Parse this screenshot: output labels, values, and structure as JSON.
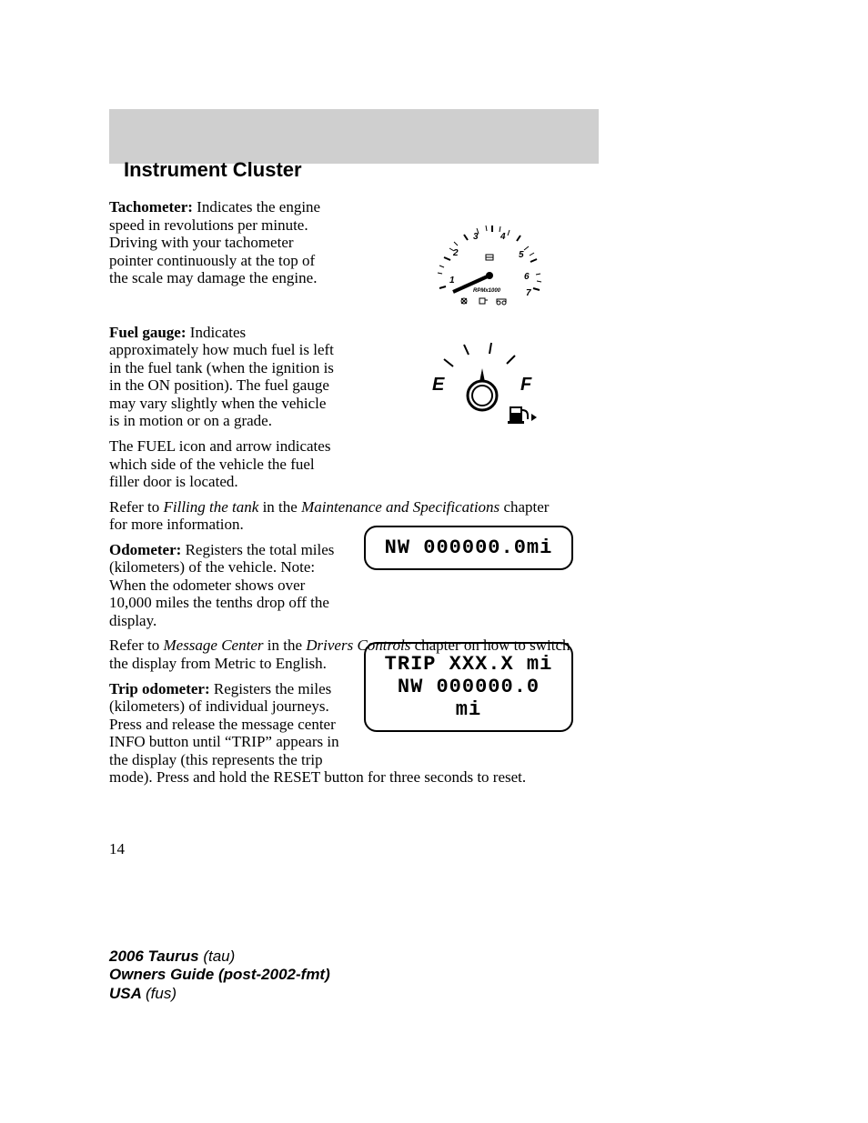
{
  "header": {
    "title": "Instrument Cluster"
  },
  "tachometer": {
    "label": "Tachometer:",
    "text": " Indicates the engine speed in revolutions per minute. Driving with your tachometer pointer continuously at the top of the scale may damage the engine.",
    "scale_label": "RPMx1000",
    "ticks": [
      "1",
      "2",
      "3",
      "4",
      "5",
      "6",
      "7"
    ]
  },
  "fuel": {
    "label": "Fuel gauge:",
    "p1": " Indicates approximately how much fuel is left in the fuel tank (when the ignition is in the ON position). The fuel gauge may vary slightly when the vehicle is in motion or on a grade.",
    "p2": "The FUEL icon and arrow indicates which side of the vehicle the fuel filler door is located.",
    "p3_a": "Refer to ",
    "p3_i1": "Filling the tank",
    "p3_b": " in the ",
    "p3_i2": "Maintenance and Specifications",
    "p3_c": " chapter for more information.",
    "E": "E",
    "F": "F"
  },
  "odometer": {
    "label": "Odometer:",
    "text": " Registers the total miles (kilometers) of the vehicle. Note: When the odometer shows over 10,000 miles the tenths drop off the display.",
    "p2_a": "Refer to ",
    "p2_i1": "Message Center",
    "p2_b": " in the ",
    "p2_i2": "Drivers Controls",
    "p2_c": " chapter on how to switch the display from Metric to English.",
    "display": "NW 000000.0mi"
  },
  "trip": {
    "label": "Trip odometer:",
    "text": " Registers the miles (kilometers) of individual journeys. Press and release the message center INFO button until “TRIP” appears in the display (this represents the trip mode). Press and hold the RESET button for three seconds to reset.",
    "display1": "TRIP   XXX.X mi",
    "display2": "NW 000000.0 mi"
  },
  "pagenum": "14",
  "footer": {
    "l1a": "2006 Taurus ",
    "l1b": "(tau)",
    "l2": "Owners Guide (post-2002-fmt)",
    "l3a": "USA ",
    "l3b": "(fus)"
  },
  "colors": {
    "bar": "#cfcfcf",
    "text": "#000000"
  }
}
